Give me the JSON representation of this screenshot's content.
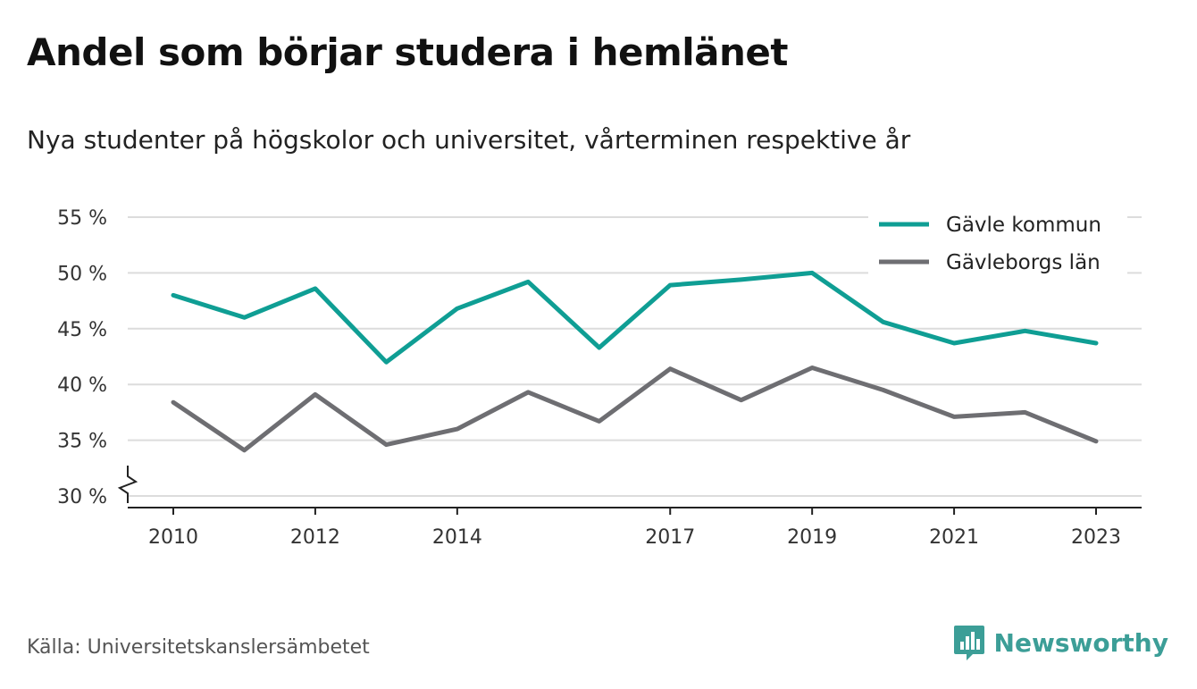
{
  "header": {
    "title": "Andel som börjar studera i hemlänet",
    "subtitle": "Nya studenter på högskolor och universitet, vårterminen respektive år"
  },
  "footer": {
    "source": "Källa: Universitetskanslersämbetet",
    "brand": "Newsworthy",
    "brand_icon": "bar-chart-logo-icon",
    "brand_color": "#3c9e97"
  },
  "chart_data": {
    "type": "line",
    "x": [
      2010,
      2011,
      2012,
      2013,
      2014,
      2015,
      2016,
      2017,
      2018,
      2019,
      2020,
      2021,
      2022,
      2023
    ],
    "x_tick_labels": [
      "2010",
      "2012",
      "2014",
      "2017",
      "2019",
      "2021",
      "2023"
    ],
    "y_tick_labels": [
      "55 %",
      "50 %",
      "45 %",
      "40 %",
      "35 %",
      "30 %"
    ],
    "ylim": [
      30,
      55
    ],
    "y_axis_break": true,
    "grid": true,
    "legend_position": "top-right",
    "series": [
      {
        "name": "Gävle kommun",
        "color": "#0f9e94",
        "values": [
          48.0,
          46.0,
          48.6,
          42.0,
          46.8,
          49.2,
          43.3,
          48.9,
          49.4,
          50.0,
          45.6,
          43.7,
          44.8,
          43.7
        ]
      },
      {
        "name": "Gävleborgs län",
        "color": "#6e6e72",
        "values": [
          38.4,
          34.1,
          39.1,
          34.6,
          36.0,
          39.3,
          36.7,
          41.4,
          38.6,
          41.5,
          39.5,
          37.1,
          37.5,
          34.9
        ]
      }
    ]
  }
}
